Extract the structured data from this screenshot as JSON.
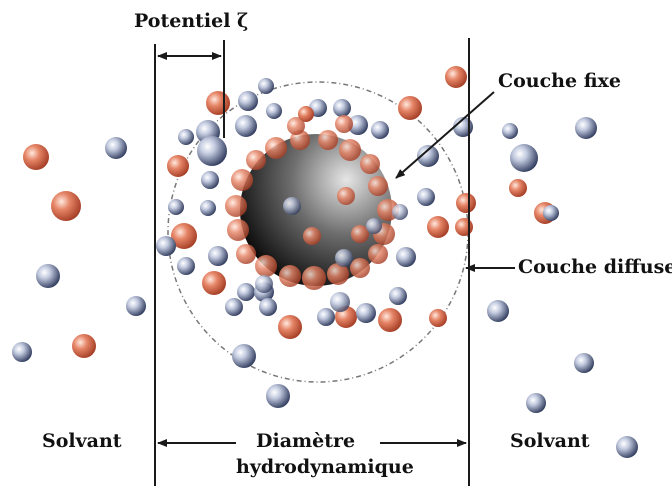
{
  "labels": {
    "potential": "Potentiel ζ",
    "fixed_layer": "Couche fixe",
    "diffuse_layer": "Couche diffuse",
    "solvent_left": "Solvant",
    "solvent_right": "Solvant",
    "diameter": "Diamètre",
    "hydrodynamic": "hydrodynamique"
  },
  "colors": {
    "cation": "#c9553a",
    "anion": "#3e4d72",
    "line": "#1a1a1a",
    "dashed": "#777777",
    "particle_light": "#e0e0e0",
    "particle_dark": "#0a0a0a"
  }
}
